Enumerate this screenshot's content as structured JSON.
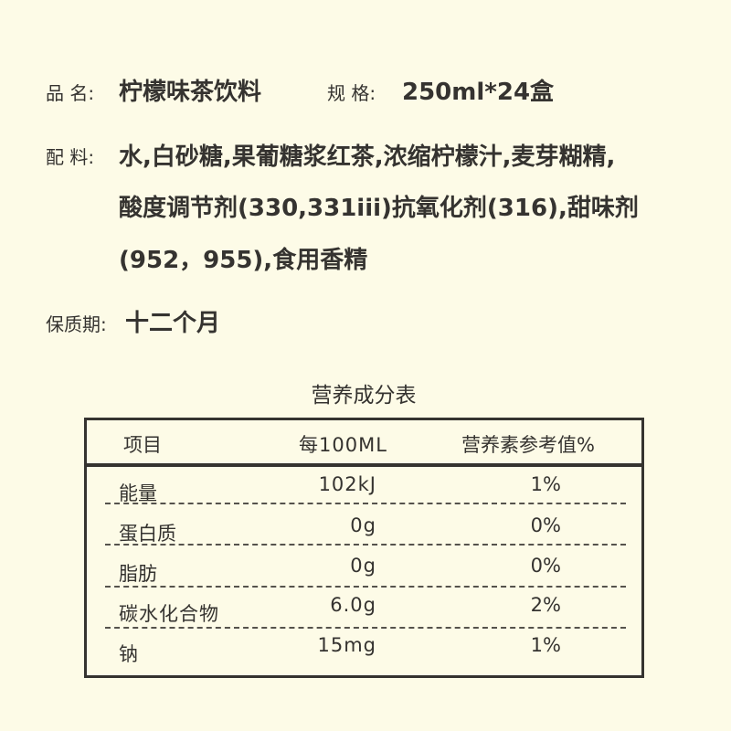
{
  "product": {
    "name_label": "品  名:",
    "name_value": "柠檬味茶饮料",
    "spec_label": "规  格:",
    "spec_value": "250ml*24盒",
    "ingredients_label": "配  料:",
    "ingredients_lines": [
      "水,白砂糖,果葡糖浆红茶,浓缩柠檬汁,麦芽糊精,",
      "酸度调节剂(330,331iii)抗氧化剂(316),甜味剂",
      "(952，955),食用香精"
    ],
    "shelf_life_label": "保质期:",
    "shelf_life_value": "十二个月"
  },
  "nutrition": {
    "title": "营养成分表",
    "headers": [
      "项目",
      "每100ML",
      "营养素参考值%"
    ],
    "rows": [
      {
        "item": "能量",
        "per100": "102kJ",
        "nrv": "1%"
      },
      {
        "item": "蛋白质",
        "per100": "0g",
        "nrv": "0%"
      },
      {
        "item": "脂肪",
        "per100": "0g",
        "nrv": "0%"
      },
      {
        "item": "碳水化合物",
        "per100": "6.0g",
        "nrv": "2%"
      },
      {
        "item": "钠",
        "per100": "15mg",
        "nrv": "1%"
      }
    ]
  },
  "colors": {
    "background": "#fdfbe7",
    "text": "#353330"
  }
}
